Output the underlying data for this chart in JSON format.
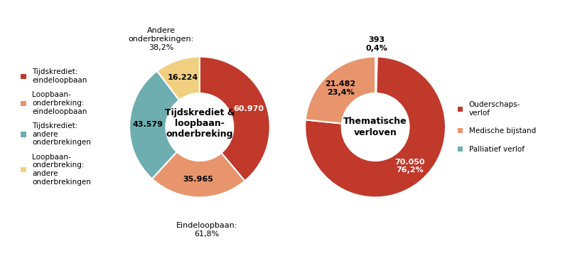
{
  "chart1": {
    "title": "Tijdskrediet &\nloopbaan-\nonderbreking",
    "values": [
      60970,
      35965,
      43579,
      16224
    ],
    "colors": [
      "#C0392B",
      "#E8956D",
      "#6EAEB0",
      "#F0D080"
    ],
    "labels": [
      "60.970",
      "35.965",
      "43.579",
      "16.224"
    ],
    "legend_labels": [
      "Tijdskrediet:\neindeloopbaan",
      "Loopbaan-\nonderbreking:\neindeloopbaan",
      "Tijdskrediet:\nandere\nonderbrekingen",
      "Loopbaan-\nonderbreking:\nandere\nonderbrekingen"
    ],
    "annotation_top": "Andere\nonderbrekingen:\n38,2%",
    "annotation_bottom": "Eindeloopbaan:\n61,8%",
    "label_colors": [
      "white",
      "black",
      "black",
      "black"
    ],
    "startangle": 90
  },
  "chart2": {
    "title": "Thematische\nverloven",
    "values": [
      70050,
      21482,
      393
    ],
    "colors": [
      "#C0392B",
      "#E8956D",
      "#6EAEB0"
    ],
    "labels": [
      "70.050\n76,2%",
      "21.482\n23,4%",
      "393\n0,4%"
    ],
    "legend_labels": [
      "Ouderschaps-\nverlof",
      "Medische bijstand",
      "Palliatief verlof"
    ],
    "label_colors": [
      "white",
      "black",
      "black"
    ],
    "startangle": 90
  },
  "fig_width": 8.09,
  "fig_height": 3.57,
  "background_color": "#ffffff",
  "font_size_labels": 8,
  "font_size_title": 9,
  "font_size_legend": 7.5,
  "font_size_annotations": 8
}
